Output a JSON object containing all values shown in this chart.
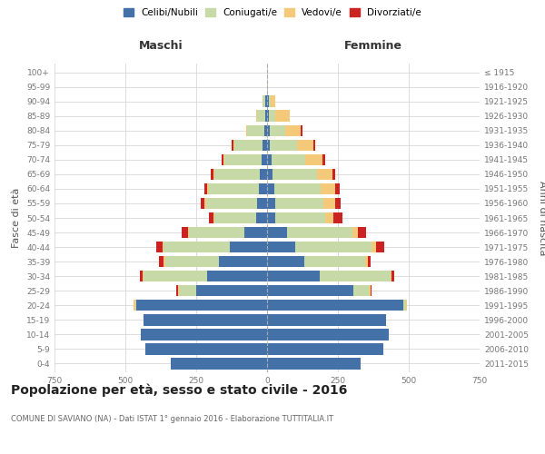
{
  "age_groups": [
    "0-4",
    "5-9",
    "10-14",
    "15-19",
    "20-24",
    "25-29",
    "30-34",
    "35-39",
    "40-44",
    "45-49",
    "50-54",
    "55-59",
    "60-64",
    "65-69",
    "70-74",
    "75-79",
    "80-84",
    "85-89",
    "90-94",
    "95-99",
    "100+"
  ],
  "birth_years": [
    "2011-2015",
    "2006-2010",
    "2001-2005",
    "1996-2000",
    "1991-1995",
    "1986-1990",
    "1981-1985",
    "1976-1980",
    "1971-1975",
    "1966-1970",
    "1961-1965",
    "1956-1960",
    "1951-1955",
    "1946-1950",
    "1941-1945",
    "1936-1940",
    "1931-1935",
    "1926-1930",
    "1921-1925",
    "1916-1920",
    "≤ 1915"
  ],
  "male": {
    "celibe": [
      340,
      430,
      445,
      435,
      460,
      250,
      210,
      170,
      130,
      80,
      40,
      35,
      30,
      25,
      20,
      15,
      10,
      5,
      5,
      0,
      0
    ],
    "coniugato": [
      0,
      0,
      0,
      0,
      5,
      60,
      225,
      190,
      235,
      195,
      145,
      180,
      175,
      160,
      130,
      100,
      60,
      30,
      10,
      0,
      0
    ],
    "vedovo": [
      0,
      0,
      0,
      0,
      5,
      5,
      5,
      5,
      5,
      5,
      5,
      5,
      5,
      5,
      5,
      5,
      5,
      5,
      0,
      0,
      0
    ],
    "divorziato": [
      0,
      0,
      0,
      0,
      0,
      5,
      10,
      15,
      20,
      20,
      15,
      15,
      10,
      10,
      5,
      5,
      0,
      0,
      0,
      0,
      0
    ]
  },
  "female": {
    "nubile": [
      330,
      410,
      430,
      420,
      480,
      305,
      185,
      130,
      100,
      70,
      30,
      30,
      25,
      20,
      15,
      10,
      10,
      5,
      5,
      0,
      0
    ],
    "coniugata": [
      0,
      0,
      0,
      0,
      10,
      55,
      250,
      215,
      270,
      230,
      175,
      170,
      165,
      155,
      120,
      95,
      55,
      25,
      8,
      2,
      0
    ],
    "vedova": [
      0,
      0,
      0,
      0,
      5,
      5,
      5,
      10,
      15,
      20,
      30,
      40,
      50,
      55,
      60,
      60,
      55,
      50,
      15,
      2,
      0
    ],
    "divorziata": [
      0,
      0,
      0,
      0,
      0,
      5,
      10,
      10,
      30,
      30,
      30,
      20,
      15,
      10,
      10,
      5,
      5,
      0,
      0,
      0,
      0
    ]
  },
  "colors": {
    "celibe": "#4472a8",
    "coniugato": "#c8d9a8",
    "vedovo": "#f5c97a",
    "divorziato": "#cc2222"
  },
  "legend_labels": [
    "Celibi/Nubili",
    "Coniugati/e",
    "Vedovi/e",
    "Divorziati/e"
  ],
  "title": "Popolazione per età, sesso e stato civile - 2016",
  "subtitle": "COMUNE DI SAVIANO (NA) - Dati ISTAT 1° gennaio 2016 - Elaborazione TUTTITALIA.IT",
  "xlabel_left": "Maschi",
  "xlabel_right": "Femmine",
  "ylabel_left": "Fasce di età",
  "ylabel_right": "Anni di nascita",
  "xlim": 750,
  "background_color": "#ffffff",
  "grid_color": "#d0d0d0",
  "axis_label_color": "#555555",
  "tick_color": "#777777"
}
